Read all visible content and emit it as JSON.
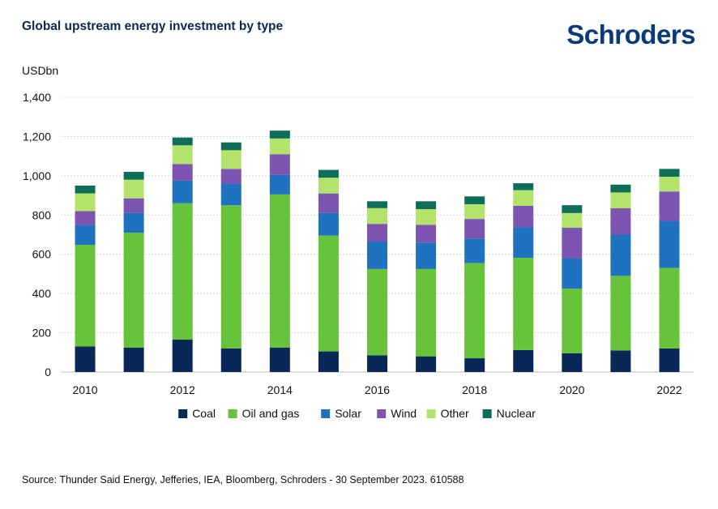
{
  "header": {
    "title": "Global upstream energy investment by type",
    "logo_text": "Schroders"
  },
  "footer": {
    "source": "Source: Thunder Said Energy, Jefferies, IEA, Bloomberg, Schroders - 30 September 2023. 610588"
  },
  "chart_data": {
    "type": "bar",
    "stacked": true,
    "ylabel": "USDbn",
    "ylim": [
      0,
      1400
    ],
    "yticks": [
      0,
      200,
      400,
      600,
      800,
      1000,
      1200,
      1400
    ],
    "ytick_labels": [
      "0",
      "200",
      "400",
      "600",
      "800",
      "1,000",
      "1,200",
      "1,400"
    ],
    "categories": [
      "2010",
      "2011",
      "2012",
      "2013",
      "2014",
      "2015",
      "2016",
      "2017",
      "2018",
      "2019",
      "2020",
      "2021",
      "2022"
    ],
    "xtick_labels": [
      "2010",
      "",
      "2012",
      "",
      "2014",
      "",
      "2016",
      "",
      "2018",
      "",
      "2020",
      "",
      "2022"
    ],
    "grid": true,
    "legend_position": "bottom",
    "series": [
      {
        "name": "Coal",
        "color": "#0a2857",
        "values": [
          130,
          125,
          165,
          120,
          125,
          105,
          85,
          80,
          70,
          112,
          95,
          110,
          120
        ]
      },
      {
        "name": "Oil and gas",
        "color": "#66c33a",
        "values": [
          518,
          585,
          695,
          730,
          780,
          590,
          440,
          445,
          485,
          470,
          330,
          380,
          410
        ]
      },
      {
        "name": "Solar",
        "color": "#1f72c0",
        "values": [
          102,
          100,
          115,
          110,
          100,
          115,
          140,
          135,
          125,
          155,
          155,
          210,
          240
        ]
      },
      {
        "name": "Wind",
        "color": "#7d55b1",
        "values": [
          70,
          75,
          85,
          75,
          105,
          100,
          90,
          90,
          100,
          110,
          155,
          135,
          150
        ]
      },
      {
        "name": "Other",
        "color": "#b4e36b",
        "values": [
          90,
          95,
          95,
          95,
          80,
          80,
          80,
          80,
          75,
          80,
          75,
          80,
          75
        ]
      },
      {
        "name": "Nuclear",
        "color": "#0f6e5a",
        "values": [
          40,
          40,
          40,
          40,
          40,
          40,
          35,
          40,
          40,
          35,
          40,
          40,
          40
        ]
      }
    ]
  }
}
